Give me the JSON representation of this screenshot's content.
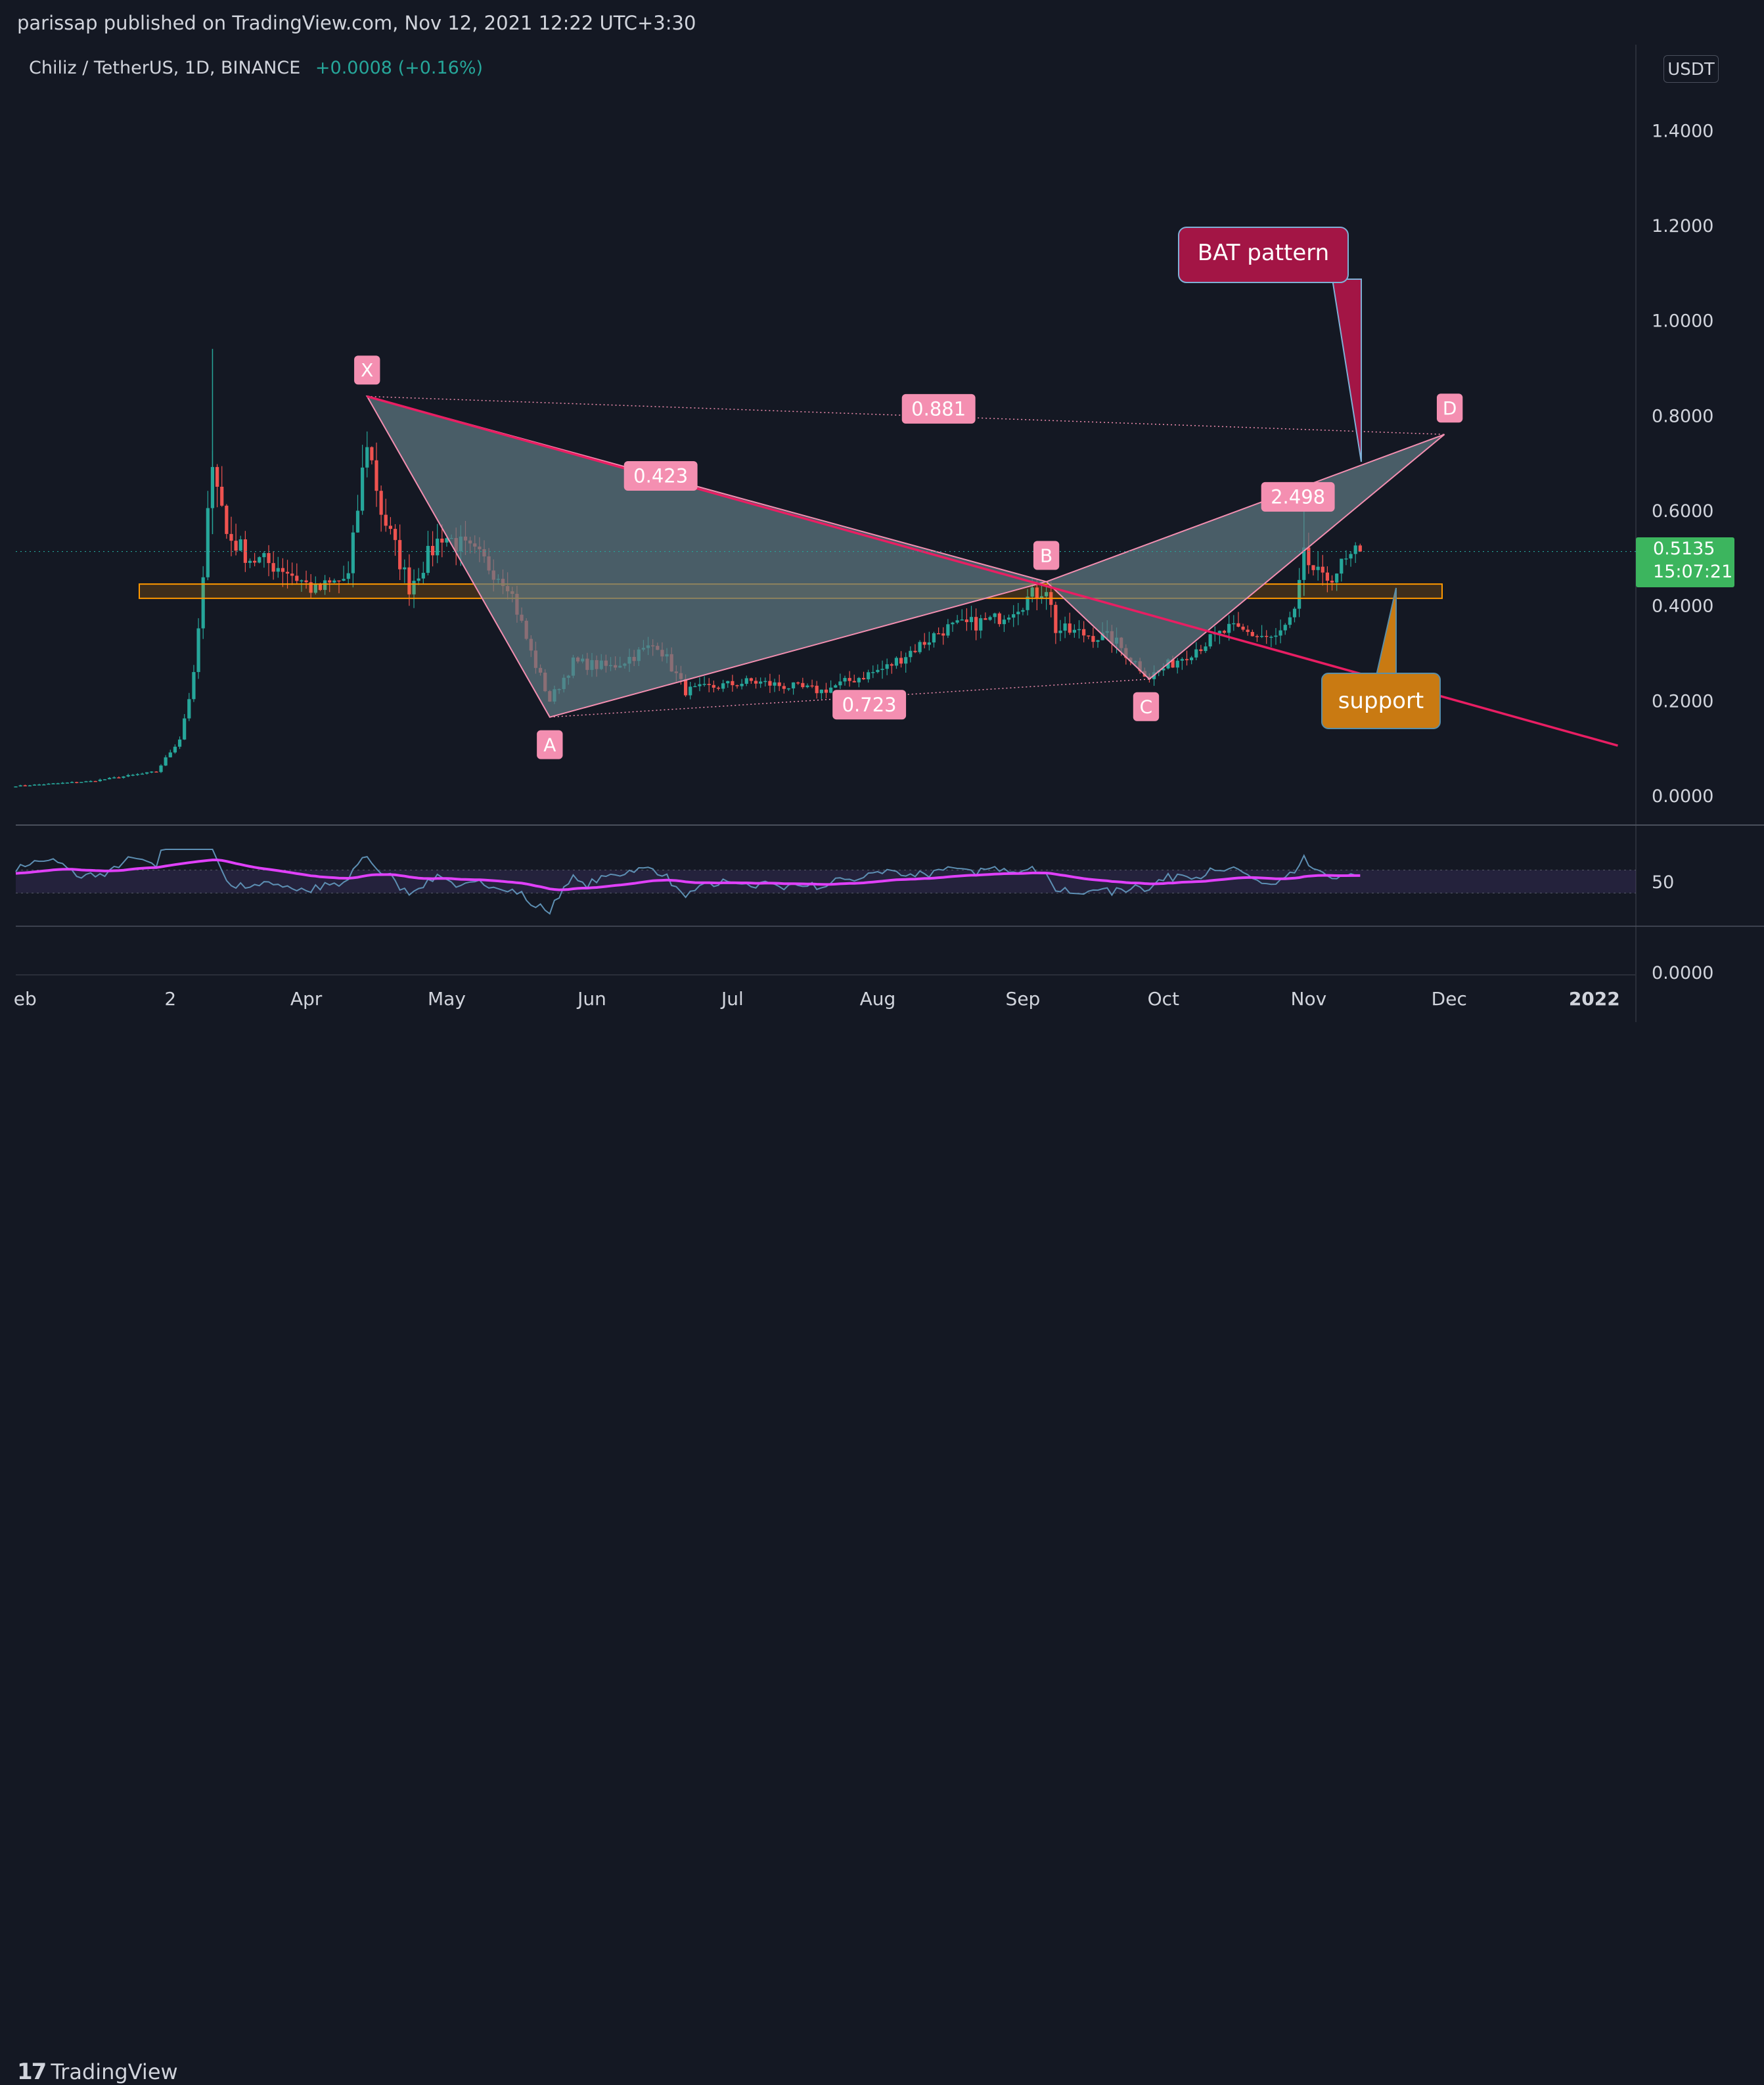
{
  "header": {
    "published": "parissap published on TradingView.com, Nov 12, 2021 12:22 UTC+3:30"
  },
  "legend": {
    "symbol": "Chiliz / TetherUS, 1D, BINANCE",
    "change": "+0.0008 (+0.16%)"
  },
  "currency_button": "USDT",
  "last_price": {
    "value": "0.5135",
    "countdown": "15:07:21"
  },
  "footer": {
    "brand": "TradingView"
  },
  "colors": {
    "background": "#141823",
    "up": "#26a69a",
    "down": "#ef5350",
    "pattern_fill": "#5f7a85",
    "pattern_line": "#f48fb1",
    "label_bg": "#f48fb1",
    "trendline": "#e91e63",
    "support_zone": "#ff9800",
    "rsi_ma": "#e040fb",
    "callout_bat": "#a31545",
    "callout_support": "#c97a12",
    "price_box": "#3cb55e"
  },
  "chart_data": [
    {
      "type": "candlestick",
      "title": "Chiliz / TetherUS, 1D, BINANCE",
      "ylim": [
        0.0,
        1.5
      ],
      "y_ticks": [
        "1.4000",
        "1.2000",
        "1.0000",
        "0.8000",
        "0.6000",
        "0.4000",
        "0.2000",
        "0.0000"
      ],
      "x_ticks": [
        "eb",
        "2",
        "Apr",
        "May",
        "Jun",
        "Jul",
        "Aug",
        "Sep",
        "Oct",
        "Nov",
        "Dec",
        "2022"
      ],
      "close_path": [
        {
          "date": "2021-01-29",
          "close": 0.02
        },
        {
          "date": "2021-02-14",
          "close": 0.03
        },
        {
          "date": "2021-02-28",
          "close": 0.05
        },
        {
          "date": "2021-03-05",
          "close": 0.12
        },
        {
          "date": "2021-03-08",
          "close": 0.25
        },
        {
          "date": "2021-03-10",
          "close": 0.45
        },
        {
          "date": "2021-03-12",
          "close": 0.72
        },
        {
          "date": "2021-03-15",
          "close": 0.55
        },
        {
          "date": "2021-03-20",
          "close": 0.5
        },
        {
          "date": "2021-03-27",
          "close": 0.48
        },
        {
          "date": "2021-04-03",
          "close": 0.43
        },
        {
          "date": "2021-04-10",
          "close": 0.46
        },
        {
          "date": "2021-04-14",
          "close": 0.75
        },
        {
          "date": "2021-04-17",
          "close": 0.6
        },
        {
          "date": "2021-04-23",
          "close": 0.44
        },
        {
          "date": "2021-04-30",
          "close": 0.55
        },
        {
          "date": "2021-05-08",
          "close": 0.5
        },
        {
          "date": "2021-05-14",
          "close": 0.45
        },
        {
          "date": "2021-05-19",
          "close": 0.3
        },
        {
          "date": "2021-05-23",
          "close": 0.2
        },
        {
          "date": "2021-05-28",
          "close": 0.28
        },
        {
          "date": "2021-06-05",
          "close": 0.27
        },
        {
          "date": "2021-06-15",
          "close": 0.32
        },
        {
          "date": "2021-06-21",
          "close": 0.22
        },
        {
          "date": "2021-07-05",
          "close": 0.24
        },
        {
          "date": "2021-07-20",
          "close": 0.22
        },
        {
          "date": "2021-08-03",
          "close": 0.27
        },
        {
          "date": "2021-08-15",
          "close": 0.35
        },
        {
          "date": "2021-08-26",
          "close": 0.37
        },
        {
          "date": "2021-09-06",
          "close": 0.44
        },
        {
          "date": "2021-09-08",
          "close": 0.35
        },
        {
          "date": "2021-09-20",
          "close": 0.33
        },
        {
          "date": "2021-09-28",
          "close": 0.25
        },
        {
          "date": "2021-10-08",
          "close": 0.31
        },
        {
          "date": "2021-10-15",
          "close": 0.35
        },
        {
          "date": "2021-10-25",
          "close": 0.33
        },
        {
          "date": "2021-10-29",
          "close": 0.38
        },
        {
          "date": "2021-10-31",
          "close": 0.5
        },
        {
          "date": "2021-11-04",
          "close": 0.45
        },
        {
          "date": "2021-11-12",
          "close": 0.5135
        }
      ],
      "harmonic_pattern": {
        "name": "BAT pattern",
        "points": [
          {
            "label": "X",
            "date": "2021-04-14",
            "price": 0.84
          },
          {
            "label": "A",
            "date": "2021-05-23",
            "price": 0.165
          },
          {
            "label": "B",
            "date": "2021-09-06",
            "price": 0.45
          },
          {
            "label": "C",
            "date": "2021-09-28",
            "price": 0.245
          },
          {
            "label": "D",
            "date": "2021-11-30",
            "price": 0.76
          }
        ],
        "ratios": [
          {
            "label": "0.423"
          },
          {
            "label": "0.881"
          },
          {
            "label": "0.723"
          },
          {
            "label": "2.498"
          }
        ]
      },
      "support_zone": {
        "from": 0.415,
        "to": 0.445,
        "label": "support"
      },
      "trendline": [
        {
          "date": "2021-04-14",
          "price": 0.84
        },
        {
          "date": "2022-01-06",
          "price": 0.105
        }
      ],
      "last_price_line": 0.5135
    },
    {
      "type": "line",
      "y_ticks": [
        "50",
        "0.0000"
      ]
    }
  ]
}
